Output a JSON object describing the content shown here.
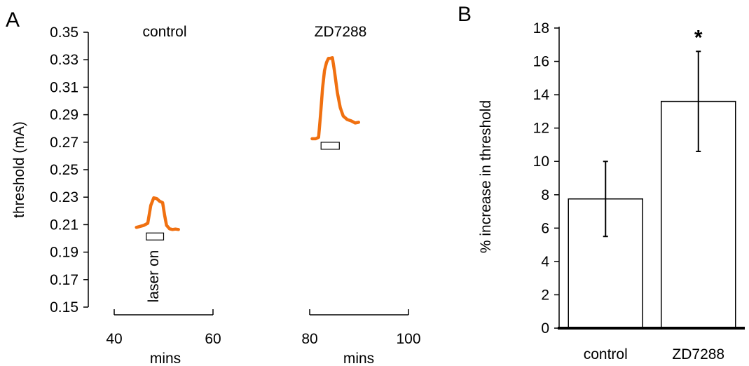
{
  "figure": {
    "panel_a_label": "A",
    "panel_b_label": "B"
  },
  "chart_data": [
    {
      "type": "line",
      "panel": "A",
      "ylabel": "threshold (mA)",
      "ylim": [
        0.15,
        0.35
      ],
      "yticks": [
        0.15,
        0.17,
        0.19,
        0.21,
        0.23,
        0.25,
        0.27,
        0.29,
        0.31,
        0.33,
        0.35
      ],
      "ytick_labels": [
        "0.15",
        "0.17",
        "0.19",
        "0.21",
        "0.23",
        "0.25",
        "0.27",
        "0.29",
        "0.31",
        "0.33",
        "0.35"
      ],
      "line_color": "#f07010",
      "marker_label": "laser on",
      "grid": false,
      "subplots": [
        {
          "title": "control",
          "xlabel": "mins",
          "xlim": [
            40,
            60
          ],
          "xtick_labels": [
            "40",
            "60"
          ],
          "laser_window": [
            46.5,
            50
          ],
          "x": [
            44.5,
            46,
            46.8,
            47.4,
            48,
            48.6,
            49.2,
            49.8,
            50.2,
            50.6,
            51.2,
            51.8,
            52.4,
            53
          ],
          "y": [
            0.208,
            0.2095,
            0.211,
            0.224,
            0.2295,
            0.229,
            0.227,
            0.226,
            0.217,
            0.2095,
            0.207,
            0.2065,
            0.2068,
            0.2065
          ]
        },
        {
          "title": "ZD7288",
          "xlabel": "mins",
          "xlim": [
            80,
            100
          ],
          "xtick_labels": [
            "80",
            "100"
          ],
          "laser_window": [
            82.3,
            86
          ],
          "x": [
            80.5,
            81.2,
            81.8,
            82.2,
            82.6,
            83,
            83.4,
            83.8,
            84.2,
            84.6,
            85,
            85.6,
            86.2,
            86.8,
            87.6,
            88.4,
            89.2,
            89.9
          ],
          "y": [
            0.2725,
            0.2725,
            0.2735,
            0.29,
            0.309,
            0.322,
            0.328,
            0.331,
            0.331,
            0.3315,
            0.322,
            0.306,
            0.295,
            0.289,
            0.2865,
            0.2855,
            0.284,
            0.2845
          ]
        }
      ]
    },
    {
      "type": "bar",
      "panel": "B",
      "ylabel": "% increase in threshold",
      "ylim": [
        0,
        18
      ],
      "yticks": [
        0,
        2,
        4,
        6,
        8,
        10,
        12,
        14,
        16,
        18
      ],
      "ytick_labels": [
        "0",
        "2",
        "4",
        "6",
        "8",
        "10",
        "12",
        "14",
        "16",
        "18"
      ],
      "categories": [
        "control",
        "ZD7288"
      ],
      "values": [
        7.75,
        13.6
      ],
      "error": [
        2.25,
        3.0
      ],
      "significance": [
        "",
        "*"
      ],
      "bar_fill": "#ffffff",
      "bar_stroke": "#000000",
      "grid": false
    }
  ]
}
